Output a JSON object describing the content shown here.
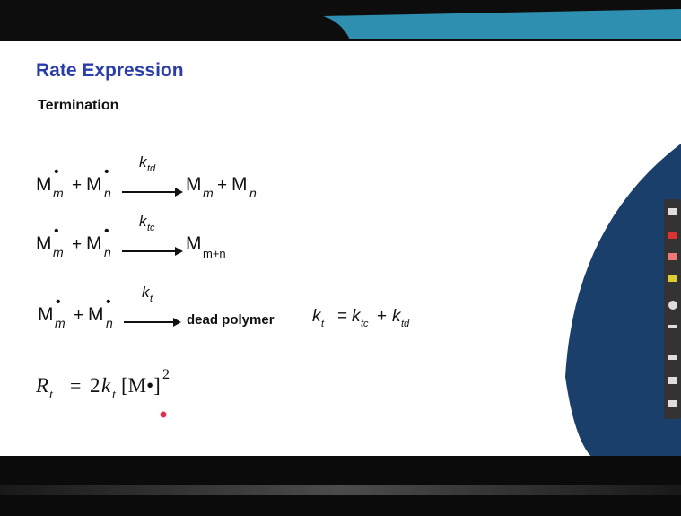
{
  "header": {
    "title": "Rate Expression",
    "subtitle": "Termination"
  },
  "reactions": [
    {
      "tokens": [
        "M",
        "•",
        "m",
        "+",
        "M",
        "•",
        "n",
        "k",
        "td",
        "M",
        "m",
        "+",
        "M",
        "n"
      ]
    },
    {
      "tokens": [
        "M",
        "•",
        "m",
        "+",
        "M",
        "•",
        "n",
        "k",
        "tc",
        "M",
        "m+n"
      ]
    },
    {
      "tokens": [
        "M",
        "•",
        "m",
        "+",
        "M",
        "•",
        "n",
        "k",
        "t",
        "dead polymer"
      ]
    }
  ],
  "relation": {
    "tokens": [
      "k",
      "t",
      "=",
      "k",
      "tc",
      "+",
      "k",
      "td"
    ]
  },
  "rate": {
    "tokens": [
      "R",
      "t",
      "=",
      "2",
      "k",
      "t",
      "[M•]",
      "2"
    ]
  }
}
